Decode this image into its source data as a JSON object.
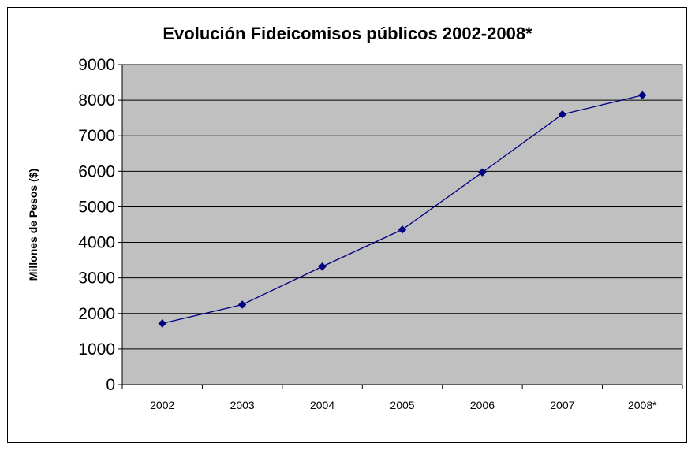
{
  "chart_data": {
    "type": "line",
    "title": "Evolución Fideicomisos públicos 2002-2008*",
    "xlabel": "",
    "ylabel": "Millones de Pesos ($)",
    "categories": [
      "2002",
      "2003",
      "2004",
      "2005",
      "2006",
      "2007",
      "2008*"
    ],
    "series": [
      {
        "values": [
          1720,
          2250,
          3320,
          4360,
          5970,
          7600,
          8140
        ]
      }
    ],
    "ylim": [
      0,
      9000
    ],
    "yticks": [
      0,
      1000,
      2000,
      3000,
      4000,
      5000,
      6000,
      7000,
      8000,
      9000
    ],
    "grid": true,
    "legend": "none",
    "colors": {
      "plot_background": "#c0c0c0",
      "line": "#000080",
      "marker": "#000080",
      "gridline": "#000000"
    }
  }
}
